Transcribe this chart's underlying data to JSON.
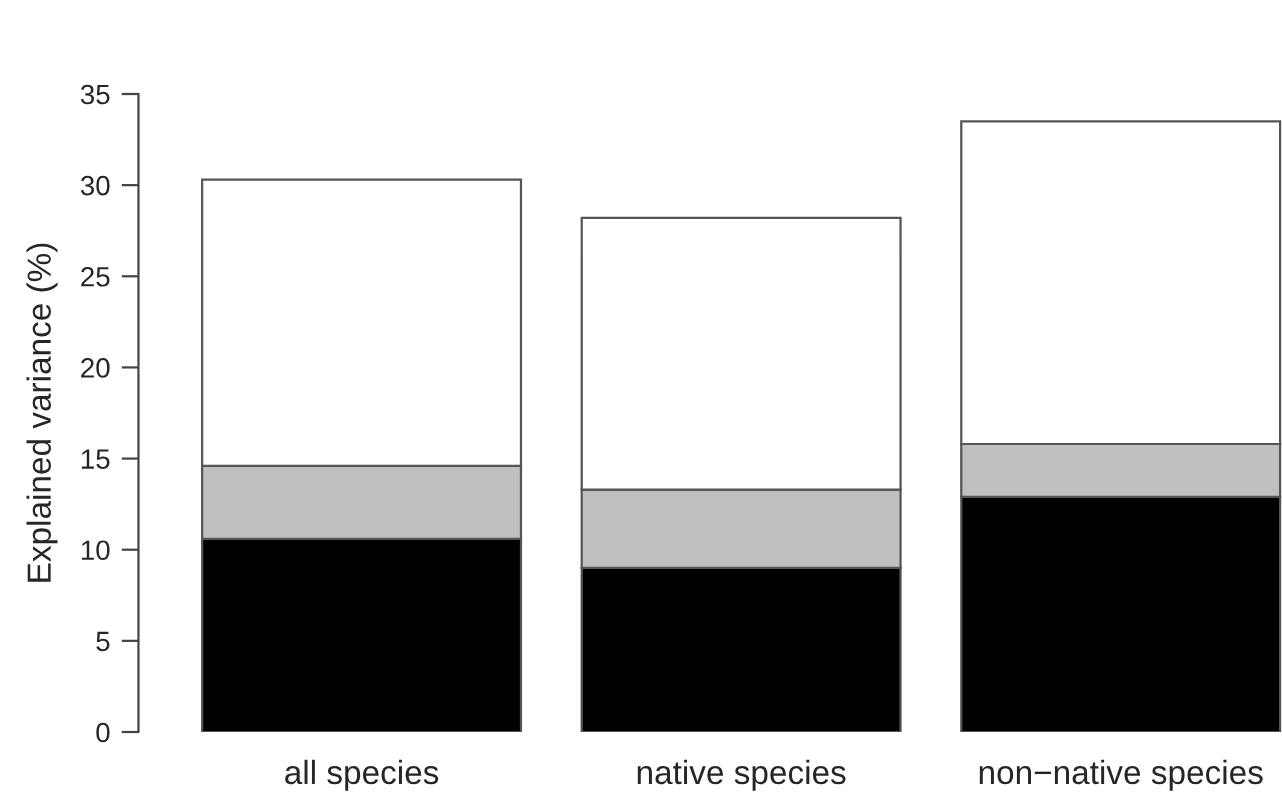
{
  "chart_data": {
    "type": "bar",
    "stacked": true,
    "ylabel": "Explained variance (%)",
    "categories": [
      "all species",
      "native species",
      "non−native species"
    ],
    "series": [
      {
        "color": "#000000",
        "values": [
          10.6,
          9.0,
          12.9
        ]
      },
      {
        "color": "#c0c0c0",
        "values": [
          4.0,
          4.3,
          2.9
        ]
      },
      {
        "color": "#ffffff",
        "values": [
          15.7,
          14.9,
          17.7
        ]
      }
    ],
    "ylim": [
      0,
      35
    ],
    "yticks": [
      0,
      5,
      10,
      15,
      20,
      25,
      30,
      35
    ],
    "grid": false,
    "legend": false
  }
}
